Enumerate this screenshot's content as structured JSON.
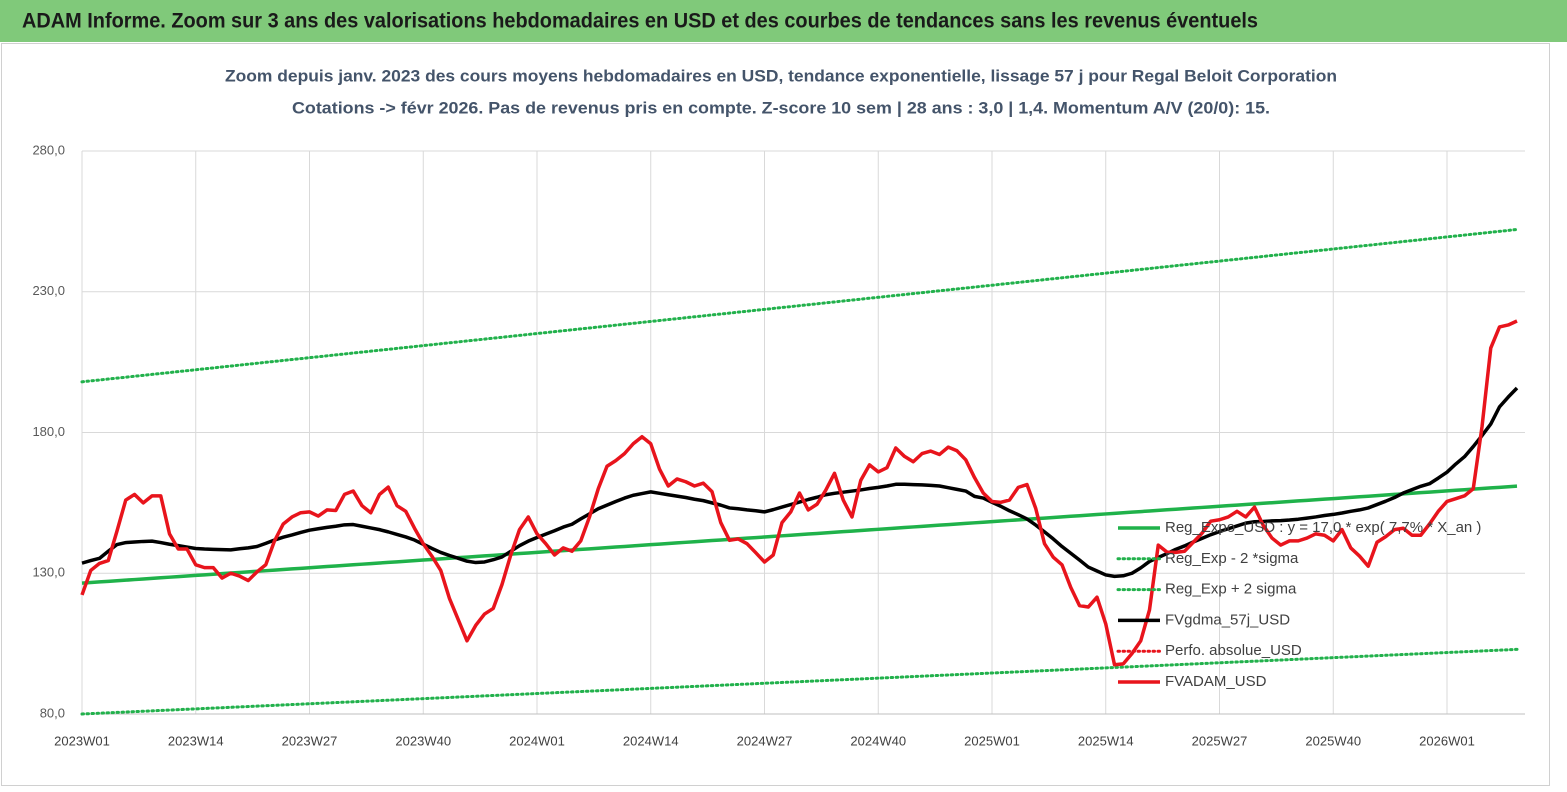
{
  "chart_data": {
    "type": "line",
    "header": "ADAM Informe. Zoom sur 3 ans des valorisations hebdomadaires en USD et des courbes de tendances sans les revenus éventuels",
    "title": "Zoom depuis janv. 2023 des cours moyens hebdomadaires en USD, tendance exponentielle, lissage 57 j pour Regal Beloit Corporation",
    "subtitle": "Cotations -> févr 2026. Pas de revenus pris en compte. Z-score 10 sem | 28 ans : 3,0 | 1,4. Momentum A/V (20/0): 15.",
    "ylim": [
      80,
      280
    ],
    "yticks": [
      {
        "value": 80,
        "label": "80,0"
      },
      {
        "value": 130,
        "label": "130,0"
      },
      {
        "value": 180,
        "label": "180,0"
      },
      {
        "value": 230,
        "label": "230,0"
      },
      {
        "value": 280,
        "label": "280,0"
      }
    ],
    "grid": true,
    "legend": "right",
    "categories": [
      "2023W01",
      null,
      null,
      null,
      null,
      null,
      null,
      null,
      null,
      null,
      null,
      null,
      null,
      "2023W14",
      null,
      null,
      null,
      null,
      null,
      null,
      null,
      null,
      null,
      null,
      null,
      null,
      "2023W27",
      null,
      null,
      null,
      null,
      null,
      null,
      null,
      null,
      null,
      null,
      null,
      null,
      "2023W40",
      null,
      null,
      null,
      null,
      null,
      null,
      null,
      null,
      null,
      null,
      null,
      null,
      "2024W01",
      null,
      null,
      null,
      null,
      null,
      null,
      null,
      null,
      null,
      null,
      null,
      null,
      "2024W14",
      null,
      null,
      null,
      null,
      null,
      null,
      null,
      null,
      null,
      null,
      null,
      null,
      "2024W27",
      null,
      null,
      null,
      null,
      null,
      null,
      null,
      null,
      null,
      null,
      null,
      null,
      "2024W40",
      null,
      null,
      null,
      null,
      null,
      null,
      null,
      null,
      null,
      null,
      null,
      null,
      "2025W01",
      null,
      null,
      null,
      null,
      null,
      null,
      null,
      null,
      null,
      null,
      null,
      null,
      "2025W14",
      null,
      null,
      null,
      null,
      null,
      null,
      null,
      null,
      null,
      null,
      null,
      null,
      "2025W27",
      null,
      null,
      null,
      null,
      null,
      null,
      null,
      null,
      null,
      null,
      null,
      null,
      "2025W40",
      null,
      null,
      null,
      null,
      null,
      null,
      null,
      null,
      null,
      null,
      null,
      null,
      "2026W01",
      null,
      null,
      null,
      null,
      null,
      null,
      null,
      null
    ],
    "series": [
      {
        "name": "Reg_Expo_USD : y = 17,0 * exp( 7,7% * X_an )",
        "color": "#1fb24a",
        "dash": false,
        "values": [
          126.5,
          126.71,
          126.92,
          127.13,
          127.34,
          127.55,
          127.76,
          127.97,
          128.18,
          128.39,
          128.6,
          128.81,
          129.02,
          129.23,
          129.44,
          129.65,
          129.86,
          130.07,
          130.28,
          130.49,
          130.7,
          130.91,
          131.12,
          131.33,
          131.54,
          131.75,
          131.96,
          132.17,
          132.38,
          132.59,
          132.8,
          133.01,
          133.22,
          133.43,
          133.64,
          133.85,
          134.06,
          134.27,
          134.48,
          134.69,
          134.9,
          135.11,
          135.32,
          135.53,
          135.74,
          135.95,
          136.16,
          136.37,
          136.58,
          136.79,
          137,
          137.21,
          137.42,
          137.63,
          137.84,
          138.05,
          138.26,
          138.47,
          138.68,
          138.89,
          139.1,
          139.31,
          139.52,
          139.73,
          139.94,
          140.15,
          140.36,
          140.57,
          140.78,
          140.99,
          141.2,
          141.41,
          141.62,
          141.83,
          142.04,
          142.25,
          142.46,
          142.67,
          142.88,
          143.09,
          143.3,
          143.51,
          143.72,
          143.93,
          144.14,
          144.35,
          144.56,
          144.77,
          144.98,
          145.19,
          145.4,
          145.61,
          145.82,
          146.03,
          146.24,
          146.45,
          146.66,
          146.87,
          147.08,
          147.29,
          147.5,
          147.71,
          147.92,
          148.13,
          148.34,
          148.55,
          148.76,
          148.97,
          149.18,
          149.39,
          149.6,
          149.81,
          150.02,
          150.23,
          150.44,
          150.65,
          150.86,
          151.07,
          151.28,
          151.49,
          151.7,
          151.91,
          152.12,
          152.33,
          152.54,
          152.75,
          152.96,
          153.17,
          153.38,
          153.59,
          153.8,
          154.01,
          154.22,
          154.43,
          154.64,
          154.85,
          155.06,
          155.27,
          155.48,
          155.69,
          155.9,
          156.11,
          156.32,
          156.53,
          156.74,
          156.95,
          157.16,
          157.37,
          157.58,
          157.79,
          158,
          158.21,
          158.42,
          158.63,
          158.84,
          159.05,
          159.26,
          159.47,
          159.68,
          159.89,
          160.1,
          160.31,
          160.52,
          160.73,
          160.94
        ]
      },
      {
        "name": "Reg_Exp - 2 *sigma",
        "color": "#22b14c",
        "dash": true,
        "values": [
          80,
          80.14,
          80.28,
          80.42,
          80.56,
          80.7,
          80.84,
          80.98,
          81.12,
          81.26,
          81.4,
          81.54,
          81.68,
          81.82,
          81.96,
          82.1,
          82.24,
          82.38,
          82.52,
          82.66,
          82.8,
          82.94,
          83.08,
          83.22,
          83.36,
          83.5,
          83.64,
          83.78,
          83.92,
          84.06,
          84.2,
          84.34,
          84.48,
          84.62,
          84.76,
          84.9,
          85.04,
          85.18,
          85.32,
          85.46,
          85.6,
          85.74,
          85.88,
          86.02,
          86.16,
          86.3,
          86.44,
          86.58,
          86.72,
          86.86,
          87,
          87.14,
          87.28,
          87.42,
          87.56,
          87.7,
          87.84,
          87.98,
          88.12,
          88.26,
          88.4,
          88.54,
          88.68,
          88.82,
          88.96,
          89.1,
          89.24,
          89.38,
          89.52,
          89.66,
          89.8,
          89.94,
          90.08,
          90.22,
          90.36,
          90.5,
          90.64,
          90.78,
          90.92,
          91.06,
          91.2,
          91.34,
          91.48,
          91.62,
          91.76,
          91.9,
          92.04,
          92.18,
          92.32,
          92.46,
          92.6,
          92.74,
          92.88,
          93.02,
          93.16,
          93.3,
          93.44,
          93.58,
          93.72,
          93.86,
          94,
          94.14,
          94.28,
          94.42,
          94.56,
          94.7,
          94.84,
          94.98,
          95.12,
          95.26,
          95.4,
          95.54,
          95.68,
          95.82,
          95.96,
          96.1,
          96.24,
          96.38,
          96.52,
          96.66,
          96.8,
          96.94,
          97.08,
          97.22,
          97.36,
          97.5,
          97.64,
          97.78,
          97.92,
          98.06,
          98.2,
          98.34,
          98.48,
          98.62,
          98.76,
          98.9,
          99.04,
          99.18,
          99.32,
          99.46,
          99.6,
          99.74,
          99.88,
          100.02,
          100.16,
          100.3,
          100.44,
          100.58,
          100.72,
          100.86,
          101,
          101.14,
          101.28,
          101.42,
          101.56,
          101.7,
          101.84,
          101.98,
          102.12,
          102.26,
          102.4,
          102.54,
          102.68,
          102.82,
          102.96
        ]
      },
      {
        "name": "Reg_Exp + 2 sigma",
        "color": "#22b14c",
        "dash": true,
        "values": [
          198,
          198.33,
          198.66,
          198.99,
          199.32,
          199.65,
          199.98,
          200.31,
          200.64,
          200.97,
          201.3,
          201.63,
          201.96,
          202.29,
          202.62,
          202.95,
          203.28,
          203.61,
          203.94,
          204.27,
          204.6,
          204.93,
          205.26,
          205.59,
          205.92,
          206.25,
          206.58,
          206.91,
          207.24,
          207.57,
          207.9,
          208.23,
          208.56,
          208.89,
          209.22,
          209.55,
          209.88,
          210.21,
          210.54,
          210.87,
          211.2,
          211.53,
          211.86,
          212.19,
          212.52,
          212.85,
          213.18,
          213.51,
          213.84,
          214.17,
          214.5,
          214.83,
          215.16,
          215.49,
          215.82,
          216.15,
          216.48,
          216.81,
          217.14,
          217.47,
          217.8,
          218.13,
          218.46,
          218.79,
          219.12,
          219.45,
          219.78,
          220.11,
          220.44,
          220.77,
          221.1,
          221.43,
          221.76,
          222.09,
          222.42,
          222.75,
          223.08,
          223.41,
          223.74,
          224.07,
          224.4,
          224.73,
          225.06,
          225.39,
          225.72,
          226.05,
          226.38,
          226.71,
          227.04,
          227.37,
          227.7,
          228.03,
          228.36,
          228.69,
          229.02,
          229.35,
          229.68,
          230.01,
          230.34,
          230.67,
          231,
          231.33,
          231.66,
          231.99,
          232.32,
          232.65,
          232.98,
          233.31,
          233.64,
          233.97,
          234.3,
          234.63,
          234.96,
          235.29,
          235.62,
          235.95,
          236.28,
          236.61,
          236.94,
          237.27,
          237.6,
          237.93,
          238.26,
          238.59,
          238.92,
          239.25,
          239.58,
          239.91,
          240.24,
          240.57,
          240.9,
          241.23,
          241.56,
          241.89,
          242.22,
          242.55,
          242.88,
          243.21,
          243.54,
          243.87,
          244.2,
          244.53,
          244.86,
          245.19,
          245.52,
          245.85,
          246.18,
          246.51,
          246.84,
          247.17,
          247.5,
          247.83,
          248.16,
          248.49,
          248.82,
          249.15,
          249.48,
          249.81,
          250.14,
          250.47,
          250.8,
          251.13,
          251.46,
          251.79,
          252.12
        ]
      },
      {
        "name": "FVgdma_57j_USD",
        "color": "#000000",
        "dash": false,
        "values": [
          133.6,
          134.5,
          135.3,
          137.8,
          140.2,
          140.9,
          141.1,
          141.3,
          141.4,
          140.9,
          140.3,
          139.8,
          139.3,
          138.8,
          138.6,
          138.5,
          138.4,
          138.3,
          138.7,
          139.0,
          139.5,
          140.6,
          141.8,
          142.8,
          143.6,
          144.5,
          145.3,
          145.8,
          146.3,
          146.7,
          147.2,
          147.3,
          146.7,
          146.1,
          145.5,
          144.7,
          143.8,
          142.9,
          141.8,
          140.3,
          138.8,
          137.4,
          136.3,
          135.3,
          134.3,
          133.8,
          134.0,
          134.8,
          135.8,
          137.8,
          139.8,
          141.4,
          142.7,
          143.9,
          145.1,
          146.4,
          147.4,
          149.3,
          151.1,
          152.9,
          154.2,
          155.5,
          156.7,
          157.7,
          158.3,
          158.9,
          158.4,
          157.9,
          157.4,
          156.9,
          156.3,
          155.8,
          155.0,
          154.2,
          153.2,
          152.9,
          152.5,
          152.2,
          151.8,
          152.6,
          153.5,
          154.4,
          155.3,
          156.2,
          157.0,
          157.9,
          158.4,
          158.8,
          159.2,
          159.6,
          160.1,
          160.5,
          161.0,
          161.6,
          161.6,
          161.5,
          161.4,
          161.2,
          161.0,
          160.4,
          159.8,
          159.2,
          157.3,
          156.7,
          155.2,
          153.8,
          152.2,
          150.8,
          149.3,
          147.1,
          144.7,
          142.2,
          139.5,
          137.1,
          134.7,
          132.2,
          130.8,
          129.4,
          128.9,
          129.1,
          130.0,
          131.9,
          134.2,
          135.6,
          137.0,
          138.5,
          139.7,
          141.1,
          142.4,
          143.7,
          144.8,
          145.8,
          146.8,
          147.8,
          148.3,
          148.4,
          148.6,
          148.7,
          148.9,
          149.2,
          149.6,
          150.0,
          150.5,
          150.9,
          151.4,
          152.0,
          152.5,
          153.2,
          154.4,
          155.6,
          156.9,
          158.5,
          159.7,
          160.9,
          161.8,
          163.8,
          165.9,
          168.8,
          171.4,
          175.0,
          178.9,
          183.0,
          189.1,
          192.6,
          195.8
        ]
      },
      {
        "name": "Perfo. absolue_USD",
        "color": "#e8141c",
        "dash": true
      },
      {
        "name": "FVADAM_USD",
        "color": "#e8141c",
        "dash": false,
        "values": [
          122.3,
          131,
          133.5,
          134.5,
          145,
          156,
          158,
          155,
          157.5,
          157.5,
          144,
          138.6,
          138.6,
          133,
          132,
          132,
          128.3,
          130,
          129,
          127.4,
          130.5,
          133,
          141.5,
          147.5,
          150,
          151.5,
          151.8,
          150.3,
          152.5,
          152.3,
          158,
          159.2,
          154,
          151.5,
          158,
          160.6,
          154,
          152,
          146,
          140.5,
          136,
          131,
          121,
          113.5,
          106,
          111.5,
          115.5,
          117.5,
          126,
          136.5,
          145.5,
          150,
          144,
          140.5,
          136.5,
          139,
          137.8,
          141.5,
          150,
          160,
          168,
          170,
          172.5,
          176,
          178.5,
          176,
          167,
          161,
          163.5,
          162.5,
          161,
          162,
          159,
          148,
          141.7,
          142.2,
          140.5,
          137.3,
          134,
          136.5,
          148,
          151.8,
          158.5,
          152.5,
          154.5,
          159.5,
          165.5,
          156,
          150,
          163,
          168.5,
          166,
          167.5,
          174.5,
          171.5,
          169.6,
          172.5,
          173.4,
          172.2,
          174.8,
          173.5,
          170.3,
          164,
          158.5,
          155.5,
          155.2,
          156,
          160.5,
          161.5,
          153,
          140.5,
          135.7,
          133,
          125,
          118.5,
          118,
          121.5,
          112,
          97.5,
          97.8,
          101.5,
          106,
          117,
          140,
          137.5,
          137.4,
          137.8,
          141,
          144.2,
          148.5,
          149,
          150,
          152,
          150,
          153.5,
          147,
          142.5,
          140,
          141.5,
          141.5,
          142.5,
          144,
          143.5,
          141.5,
          145.5,
          139,
          136.1,
          132.5,
          141,
          143,
          145.5,
          146,
          143.5,
          143.5,
          147.5,
          152,
          155.5,
          156.5,
          157.5,
          160,
          182,
          210,
          217.5,
          218.2,
          219.6
        ]
      }
    ]
  }
}
